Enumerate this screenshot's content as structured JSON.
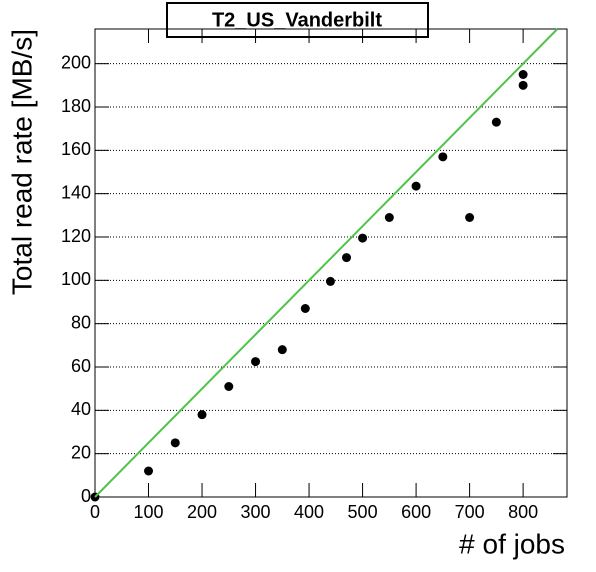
{
  "chart_data": {
    "type": "scatter",
    "title": "T2_US_Vanderbilt",
    "xlabel": "# of jobs",
    "ylabel": "Total read rate [MB/s]",
    "series": [
      {
        "type": "scatter",
        "color": "#000000",
        "x": [
          0,
          100,
          150,
          200,
          250,
          300,
          350,
          393,
          440,
          470,
          500,
          550,
          600,
          650,
          700,
          750,
          800,
          800
        ],
        "values": [
          0,
          12,
          25,
          38,
          51,
          62.5,
          68,
          87,
          99.5,
          110.5,
          119.5,
          129,
          143.5,
          157,
          129,
          173,
          190,
          195
        ]
      },
      {
        "type": "line",
        "color": "#4fc34a",
        "x": [
          0,
          864
        ],
        "values": [
          0,
          216
        ]
      }
    ],
    "xlim": [
      0,
      882
    ],
    "ylim": [
      0,
      216
    ],
    "xticks": [
      0,
      100,
      200,
      300,
      400,
      500,
      600,
      700,
      800
    ],
    "yticks": [
      0,
      20,
      40,
      60,
      80,
      100,
      120,
      140,
      160,
      180,
      200
    ],
    "ygrid": true
  }
}
